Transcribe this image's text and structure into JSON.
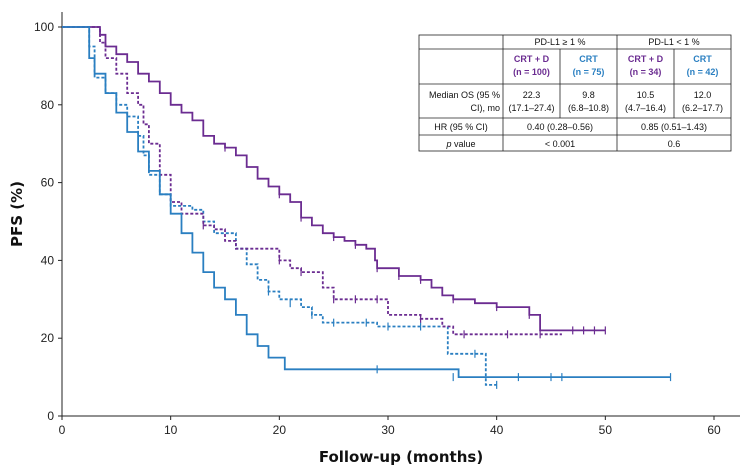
{
  "chart_data": {
    "type": "line",
    "title": "",
    "xlabel": "Follow-up (months)",
    "ylabel": "PFS (%)",
    "xlim": [
      0,
      65
    ],
    "ylim": [
      0,
      105
    ],
    "xticks": [
      0,
      10,
      20,
      30,
      40,
      50,
      60
    ],
    "yticks": [
      0,
      20,
      40,
      60,
      80,
      100
    ],
    "grid": false,
    "series": [
      {
        "name": "PD-L1 ≥ 1% CRT + D",
        "color": "#6b2c91",
        "dash": "solid",
        "points": [
          [
            0,
            100
          ],
          [
            3,
            100
          ],
          [
            3.5,
            98
          ],
          [
            4,
            95
          ],
          [
            5,
            93
          ],
          [
            6,
            91
          ],
          [
            7,
            88
          ],
          [
            8,
            86
          ],
          [
            9,
            83
          ],
          [
            10,
            80
          ],
          [
            11,
            78
          ],
          [
            12,
            76
          ],
          [
            13,
            72
          ],
          [
            14,
            70
          ],
          [
            15,
            69
          ],
          [
            16,
            67
          ],
          [
            17,
            64
          ],
          [
            18,
            61
          ],
          [
            19,
            59
          ],
          [
            20,
            57
          ],
          [
            21,
            55
          ],
          [
            22,
            51
          ],
          [
            23,
            49
          ],
          [
            24,
            47
          ],
          [
            25,
            46
          ],
          [
            26,
            45
          ],
          [
            27,
            44
          ],
          [
            28,
            43
          ],
          [
            28.8,
            40
          ],
          [
            29,
            38
          ],
          [
            31,
            36
          ],
          [
            33,
            35
          ],
          [
            34,
            33
          ],
          [
            35,
            31
          ],
          [
            36,
            30
          ],
          [
            38,
            29
          ],
          [
            40,
            28
          ],
          [
            43,
            26
          ],
          [
            44,
            22
          ],
          [
            50,
            22
          ]
        ],
        "censors": [
          [
            15,
            69
          ],
          [
            20,
            57
          ],
          [
            22,
            51
          ],
          [
            25,
            46
          ],
          [
            27,
            44
          ],
          [
            29,
            38
          ],
          [
            31,
            36
          ],
          [
            33,
            35
          ],
          [
            36,
            30
          ],
          [
            40,
            28
          ],
          [
            43,
            26
          ],
          [
            47,
            22
          ],
          [
            48,
            22
          ],
          [
            49,
            22
          ],
          [
            50,
            22
          ]
        ]
      },
      {
        "name": "PD-L1 ≥ 1% CRT",
        "color": "#2a7fc1",
        "dash": "dashed",
        "points": [
          [
            0,
            100
          ],
          [
            2,
            100
          ],
          [
            2.5,
            95
          ],
          [
            3,
            87
          ],
          [
            4,
            83
          ],
          [
            5,
            80
          ],
          [
            6,
            77
          ],
          [
            7,
            72
          ],
          [
            7.5,
            67
          ],
          [
            8,
            62
          ],
          [
            9,
            57
          ],
          [
            10,
            54
          ],
          [
            12,
            53
          ],
          [
            13,
            50
          ],
          [
            14,
            47
          ],
          [
            16,
            43
          ],
          [
            17,
            39
          ],
          [
            18,
            35
          ],
          [
            19,
            32
          ],
          [
            20,
            30
          ],
          [
            22,
            28
          ],
          [
            23,
            26
          ],
          [
            24,
            24
          ],
          [
            28,
            24
          ],
          [
            29,
            23
          ],
          [
            35,
            23
          ],
          [
            35.5,
            16
          ],
          [
            38,
            16
          ],
          [
            39,
            8
          ],
          [
            40,
            8
          ]
        ],
        "censors": [
          [
            10,
            54
          ],
          [
            19,
            32
          ],
          [
            21,
            29
          ],
          [
            23,
            26
          ],
          [
            25,
            24
          ],
          [
            28,
            24
          ],
          [
            30,
            23
          ],
          [
            33,
            23
          ],
          [
            38,
            16
          ],
          [
            40,
            8
          ]
        ]
      },
      {
        "name": "PD-L1 < 1% CRT + D",
        "color": "#6b2c91",
        "dash": "dashed",
        "points": [
          [
            0,
            100
          ],
          [
            3,
            100
          ],
          [
            3.5,
            96
          ],
          [
            4,
            92
          ],
          [
            5,
            88
          ],
          [
            6,
            83
          ],
          [
            7,
            80
          ],
          [
            7.5,
            75
          ],
          [
            8,
            70
          ],
          [
            9,
            62
          ],
          [
            10,
            55
          ],
          [
            11,
            52
          ],
          [
            13,
            49
          ],
          [
            14,
            48
          ],
          [
            15,
            45
          ],
          [
            16,
            43
          ],
          [
            19,
            43
          ],
          [
            20,
            40
          ],
          [
            21,
            38
          ],
          [
            22,
            37
          ],
          [
            24,
            33
          ],
          [
            25,
            30
          ],
          [
            29,
            30
          ],
          [
            30,
            26
          ],
          [
            33,
            25
          ],
          [
            35,
            23
          ],
          [
            36,
            21
          ],
          [
            46,
            21
          ]
        ],
        "censors": [
          [
            10,
            55
          ],
          [
            13,
            49
          ],
          [
            20,
            40
          ],
          [
            22,
            37
          ],
          [
            25,
            30
          ],
          [
            27,
            30
          ],
          [
            29,
            30
          ],
          [
            33,
            25
          ],
          [
            37,
            21
          ],
          [
            41,
            21
          ],
          [
            44,
            21
          ]
        ]
      },
      {
        "name": "PD-L1 < 1% CRT",
        "color": "#2a7fc1",
        "dash": "solid",
        "points": [
          [
            0,
            100
          ],
          [
            2,
            100
          ],
          [
            2.5,
            92
          ],
          [
            3,
            88
          ],
          [
            4,
            83
          ],
          [
            5,
            78
          ],
          [
            6,
            73
          ],
          [
            7,
            68
          ],
          [
            8,
            63
          ],
          [
            9,
            57
          ],
          [
            10,
            52
          ],
          [
            11,
            47
          ],
          [
            12,
            42
          ],
          [
            13,
            37
          ],
          [
            14,
            33
          ],
          [
            15,
            30
          ],
          [
            16,
            26
          ],
          [
            17,
            21
          ],
          [
            18,
            18
          ],
          [
            19,
            15
          ],
          [
            20,
            15
          ],
          [
            20.5,
            12
          ],
          [
            36,
            12
          ],
          [
            36.5,
            10
          ],
          [
            56,
            10
          ]
        ],
        "censors": [
          [
            29,
            12
          ],
          [
            36,
            10
          ],
          [
            42,
            10
          ],
          [
            45,
            10
          ],
          [
            46,
            10
          ],
          [
            56,
            10
          ]
        ]
      }
    ],
    "inset_table": {
      "group_headers": [
        "PD-L1 ≥ 1 %",
        "PD-L1 < 1 %"
      ],
      "arm_headers": [
        {
          "name": "CRT + D",
          "n": "(n = 100)"
        },
        {
          "name": "CRT",
          "n": "(n = 75)"
        },
        {
          "name": "CRT + D",
          "n": "(n = 34)"
        },
        {
          "name": "CRT",
          "n": "(n = 42)"
        }
      ],
      "median_label_1": "Median OS (95 %",
      "median_label_2": "CI), mo",
      "median": [
        {
          "value": "22.3",
          "ci": "(17.1–27.4)"
        },
        {
          "value": "9.8",
          "ci": "(6.8–10.8)"
        },
        {
          "value": "10.5",
          "ci": "(4.7–16.4)"
        },
        {
          "value": "12.0",
          "ci": "(6.2–17.7)"
        }
      ],
      "hr_label": "HR (95 % CI)",
      "hr_values": [
        "0.40 (0.28–0.56)",
        "0.85 (0.51–1.43)"
      ],
      "p_label_italic": "p",
      "p_label_rest": " value",
      "p_values": [
        "< 0.001",
        "0.6"
      ]
    }
  }
}
